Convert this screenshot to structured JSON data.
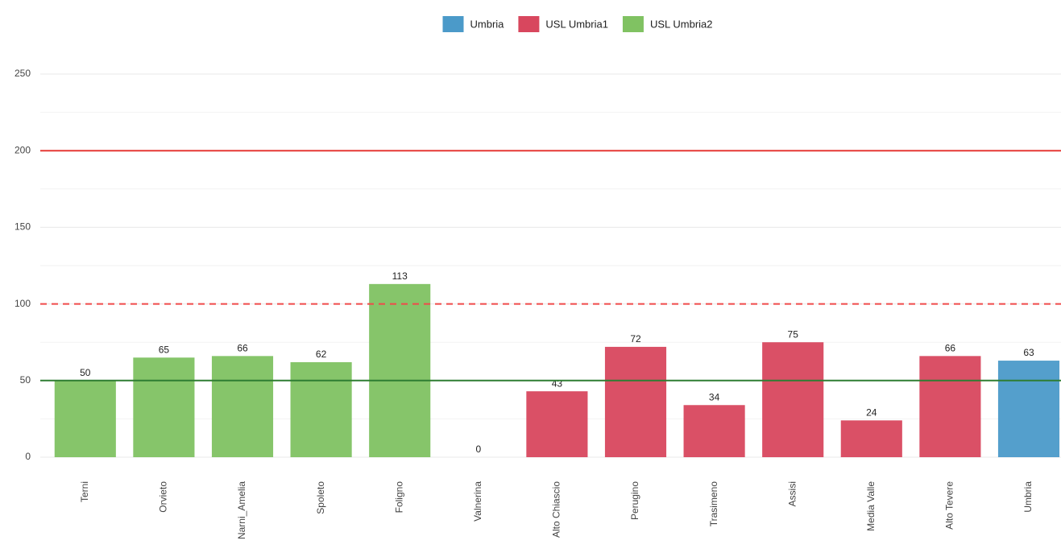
{
  "chart_data": {
    "type": "bar",
    "categories": [
      "Terni",
      "Orvieto",
      "Narni_Amelia",
      "Spoleto",
      "Foligno",
      "Valnerina",
      "Alto Chiascio",
      "Perugino",
      "Trasimeno",
      "Assisi",
      "Media Valle",
      "Alto Tevere",
      "Umbria"
    ],
    "series": [
      {
        "name": "Umbria",
        "color": "#4b9ac9",
        "values": [
          null,
          null,
          null,
          null,
          null,
          null,
          null,
          null,
          null,
          null,
          null,
          null,
          63
        ]
      },
      {
        "name": "USL Umbria1",
        "color": "#d8475e",
        "values": [
          null,
          null,
          null,
          null,
          null,
          null,
          43,
          72,
          34,
          75,
          24,
          66,
          null
        ]
      },
      {
        "name": "USL Umbria2",
        "color": "#80c262",
        "values": [
          50,
          65,
          66,
          62,
          113,
          0,
          null,
          null,
          null,
          null,
          null,
          null,
          null
        ]
      }
    ],
    "ylim": [
      0,
      250
    ],
    "yticks": [
      0,
      50,
      100,
      150,
      200,
      250
    ],
    "minor_yticks": [
      25,
      75,
      125,
      175,
      225
    ],
    "grid": true,
    "reference_lines": [
      {
        "value": 200,
        "color": "#e53935",
        "style": "solid"
      },
      {
        "value": 100,
        "color": "#f04a4a",
        "style": "dashed"
      },
      {
        "value": 50,
        "color": "#2e7d32",
        "style": "solid"
      }
    ],
    "legend": "top"
  }
}
